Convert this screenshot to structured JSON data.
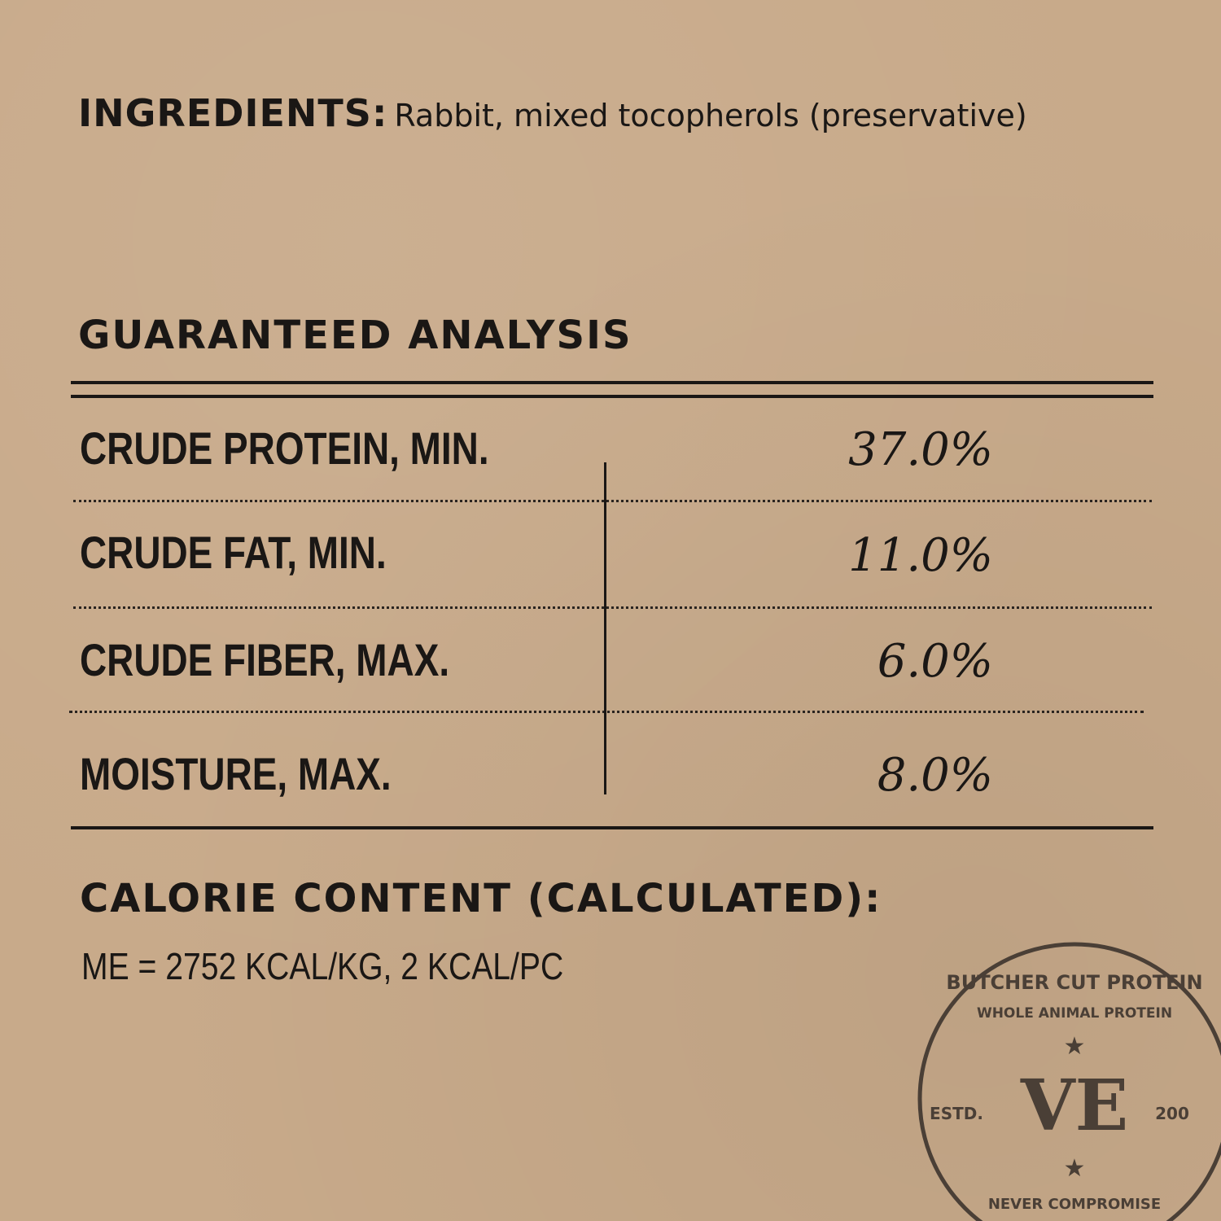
{
  "ingredients": {
    "label": "INGREDIENTS:",
    "text": "Rabbit, mixed tocopherols (preservative)"
  },
  "guaranteed_analysis": {
    "title": "GUARANTEED ANALYSIS",
    "rows": [
      {
        "label": "CRUDE PROTEIN, MIN.",
        "value": "37.0%"
      },
      {
        "label": "CRUDE FAT, MIN.",
        "value": "11.0%"
      },
      {
        "label": "CRUDE FIBER, MAX.",
        "value": "6.0%"
      },
      {
        "label": "MOISTURE, MAX.",
        "value": "8.0%"
      }
    ]
  },
  "calorie": {
    "title": "CALORIE CONTENT (CALCULATED):",
    "text": "ME = 2752 KCAL/KG, 2 KCAL/PC"
  },
  "stamp": {
    "outer_text": "BUTCHER CUT PROTEIN",
    "inner_text": "WHOLE ANIMAL PROTEIN",
    "bottom_text": "NEVER COMPROMISE",
    "estd": "ESTD.",
    "year": "200",
    "logo": "VE",
    "color": "#4a3f36"
  }
}
